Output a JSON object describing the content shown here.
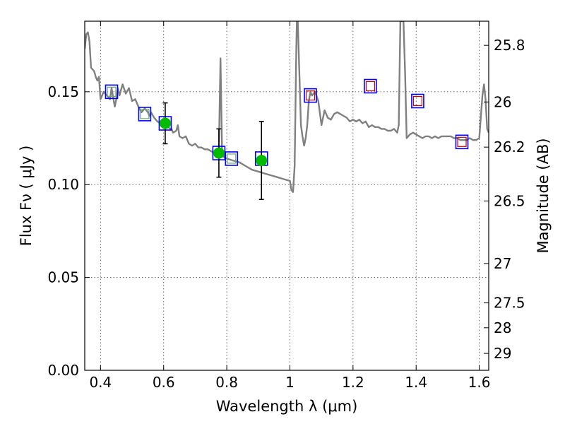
{
  "chart_data": {
    "type": "line",
    "title": "",
    "xlabel": "Wavelength  λ (μm)",
    "ylabel": "Flux  Fν  ( μJy )",
    "y2label": "Magnitude (AB)",
    "xlim": [
      0.35,
      1.63
    ],
    "ylim": [
      0.0,
      0.188
    ],
    "x_ticks": [
      0.4,
      0.6,
      0.8,
      1.0,
      1.2,
      1.4,
      1.6
    ],
    "x_tick_labels": [
      "0.4",
      "0.6",
      "0.8",
      "1",
      "1.2",
      "1.4",
      "1.6"
    ],
    "y_ticks": [
      0.0,
      0.05,
      0.1,
      0.15
    ],
    "y_tick_labels": [
      "0.00",
      "0.05",
      "0.10",
      "0.15"
    ],
    "magnitude_ticks": [
      {
        "label": "25.8",
        "flux": 0.175
      },
      {
        "label": "26",
        "flux": 0.1445
      },
      {
        "label": "26.2",
        "flux": 0.1202
      },
      {
        "label": "26.5",
        "flux": 0.0912
      },
      {
        "label": "27",
        "flux": 0.0575
      },
      {
        "label": "27.5",
        "flux": 0.0363
      },
      {
        "label": "28",
        "flux": 0.0229
      },
      {
        "label": "29",
        "flux": 0.0091
      }
    ],
    "grid": true,
    "colors": {
      "spectrum": "#808080",
      "observed": "#00bb00",
      "errorbar": "#000000",
      "model_box": "#0000ff",
      "nir_marker": "#cc0000",
      "optical_marker": "#66aa66"
    },
    "series": [
      {
        "name": "model spectrum",
        "kind": "line",
        "points": [
          [
            0.35,
            0.173
          ],
          [
            0.355,
            0.181
          ],
          [
            0.36,
            0.182
          ],
          [
            0.365,
            0.177
          ],
          [
            0.37,
            0.163
          ],
          [
            0.38,
            0.161
          ],
          [
            0.385,
            0.158
          ],
          [
            0.39,
            0.156
          ],
          [
            0.395,
            0.158
          ],
          [
            0.4,
            0.146
          ],
          [
            0.41,
            0.15
          ],
          [
            0.42,
            0.148
          ],
          [
            0.43,
            0.146
          ],
          [
            0.435,
            0.152
          ],
          [
            0.44,
            0.147
          ],
          [
            0.445,
            0.142
          ],
          [
            0.45,
            0.146
          ],
          [
            0.455,
            0.152
          ],
          [
            0.46,
            0.148
          ],
          [
            0.47,
            0.154
          ],
          [
            0.48,
            0.149
          ],
          [
            0.49,
            0.152
          ],
          [
            0.5,
            0.145
          ],
          [
            0.51,
            0.146
          ],
          [
            0.52,
            0.142
          ],
          [
            0.53,
            0.139
          ],
          [
            0.54,
            0.141
          ],
          [
            0.55,
            0.139
          ],
          [
            0.555,
            0.137
          ],
          [
            0.56,
            0.139
          ],
          [
            0.57,
            0.136
          ],
          [
            0.58,
            0.134
          ],
          [
            0.59,
            0.133
          ],
          [
            0.6,
            0.131
          ],
          [
            0.61,
            0.132
          ],
          [
            0.62,
            0.13
          ],
          [
            0.625,
            0.13
          ],
          [
            0.63,
            0.128
          ],
          [
            0.64,
            0.129
          ],
          [
            0.645,
            0.132
          ],
          [
            0.65,
            0.126
          ],
          [
            0.66,
            0.125
          ],
          [
            0.67,
            0.126
          ],
          [
            0.68,
            0.122
          ],
          [
            0.69,
            0.121
          ],
          [
            0.7,
            0.122
          ],
          [
            0.71,
            0.12
          ],
          [
            0.72,
            0.12
          ],
          [
            0.73,
            0.119
          ],
          [
            0.74,
            0.119
          ],
          [
            0.75,
            0.118
          ],
          [
            0.76,
            0.117
          ],
          [
            0.77,
            0.116
          ],
          [
            0.775,
            0.118
          ],
          [
            0.78,
            0.168
          ],
          [
            0.785,
            0.118
          ],
          [
            0.79,
            0.115
          ],
          [
            0.8,
            0.114
          ],
          [
            0.82,
            0.113
          ],
          [
            0.84,
            0.112
          ],
          [
            0.86,
            0.11
          ],
          [
            0.88,
            0.108
          ],
          [
            0.9,
            0.107
          ],
          [
            0.92,
            0.106
          ],
          [
            0.94,
            0.105
          ],
          [
            0.96,
            0.104
          ],
          [
            0.98,
            0.103
          ],
          [
            1.0,
            0.102
          ],
          [
            1.005,
            0.097
          ],
          [
            1.01,
            0.096
          ],
          [
            1.015,
            0.11
          ],
          [
            1.02,
            0.17
          ],
          [
            1.022,
            0.188
          ],
          [
            1.025,
            0.188
          ],
          [
            1.03,
            0.16
          ],
          [
            1.035,
            0.132
          ],
          [
            1.04,
            0.126
          ],
          [
            1.045,
            0.121
          ],
          [
            1.05,
            0.125
          ],
          [
            1.055,
            0.132
          ],
          [
            1.06,
            0.145
          ],
          [
            1.065,
            0.15
          ],
          [
            1.07,
            0.148
          ],
          [
            1.08,
            0.15
          ],
          [
            1.09,
            0.145
          ],
          [
            1.1,
            0.132
          ],
          [
            1.11,
            0.14
          ],
          [
            1.12,
            0.136
          ],
          [
            1.13,
            0.135
          ],
          [
            1.14,
            0.138
          ],
          [
            1.15,
            0.139
          ],
          [
            1.16,
            0.138
          ],
          [
            1.17,
            0.137
          ],
          [
            1.18,
            0.136
          ],
          [
            1.19,
            0.134
          ],
          [
            1.2,
            0.135
          ],
          [
            1.21,
            0.134
          ],
          [
            1.22,
            0.135
          ],
          [
            1.23,
            0.133
          ],
          [
            1.24,
            0.134
          ],
          [
            1.25,
            0.131
          ],
          [
            1.26,
            0.132
          ],
          [
            1.27,
            0.131
          ],
          [
            1.28,
            0.131
          ],
          [
            1.29,
            0.13
          ],
          [
            1.3,
            0.13
          ],
          [
            1.31,
            0.129
          ],
          [
            1.32,
            0.129
          ],
          [
            1.33,
            0.13
          ],
          [
            1.34,
            0.128
          ],
          [
            1.345,
            0.132
          ],
          [
            1.35,
            0.188
          ],
          [
            1.36,
            0.188
          ],
          [
            1.365,
            0.16
          ],
          [
            1.37,
            0.125
          ],
          [
            1.38,
            0.127
          ],
          [
            1.39,
            0.128
          ],
          [
            1.4,
            0.127
          ],
          [
            1.41,
            0.126
          ],
          [
            1.42,
            0.125
          ],
          [
            1.43,
            0.126
          ],
          [
            1.44,
            0.126
          ],
          [
            1.45,
            0.125
          ],
          [
            1.46,
            0.126
          ],
          [
            1.47,
            0.125
          ],
          [
            1.48,
            0.126
          ],
          [
            1.49,
            0.126
          ],
          [
            1.5,
            0.126
          ],
          [
            1.51,
            0.126
          ],
          [
            1.52,
            0.125
          ],
          [
            1.53,
            0.125
          ],
          [
            1.54,
            0.124
          ],
          [
            1.55,
            0.124
          ],
          [
            1.56,
            0.124
          ],
          [
            1.57,
            0.125
          ],
          [
            1.58,
            0.124
          ],
          [
            1.59,
            0.124
          ],
          [
            1.6,
            0.125
          ],
          [
            1.61,
            0.148
          ],
          [
            1.615,
            0.154
          ],
          [
            1.62,
            0.146
          ],
          [
            1.625,
            0.13
          ],
          [
            1.63,
            0.128
          ]
        ]
      },
      {
        "name": "model photometry",
        "kind": "box",
        "points": [
          [
            0.435,
            0.15
          ],
          [
            0.54,
            0.138
          ],
          [
            0.605,
            0.133
          ],
          [
            0.775,
            0.117
          ],
          [
            0.815,
            0.114
          ],
          [
            0.91,
            0.114
          ],
          [
            1.065,
            0.148
          ],
          [
            1.255,
            0.153
          ],
          [
            1.405,
            0.145
          ],
          [
            1.545,
            0.123
          ]
        ]
      },
      {
        "name": "observed photometry",
        "kind": "errorbar",
        "points": [
          [
            0.605,
            0.133,
            0.011
          ],
          [
            0.775,
            0.117,
            0.013
          ],
          [
            0.91,
            0.113,
            0.021
          ]
        ]
      },
      {
        "name": "nir markers",
        "kind": "open_square",
        "points": [
          [
            1.065,
            0.148
          ],
          [
            1.255,
            0.153
          ],
          [
            1.405,
            0.145
          ],
          [
            1.545,
            0.123
          ]
        ]
      },
      {
        "name": "optical markers",
        "kind": "open_square",
        "points": [
          [
            0.435,
            0.15
          ],
          [
            0.54,
            0.138
          ],
          [
            0.815,
            0.114
          ]
        ]
      }
    ]
  }
}
